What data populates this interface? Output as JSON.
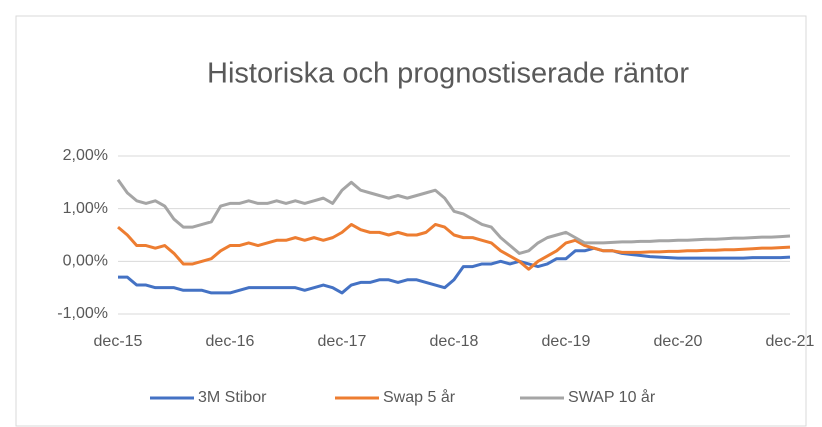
{
  "chart_data": {
    "type": "line",
    "title": "Historiska och prognostiserade räntor",
    "x": [
      "2015-12",
      "2016-01",
      "2016-02",
      "2016-03",
      "2016-04",
      "2016-05",
      "2016-06",
      "2016-07",
      "2016-08",
      "2016-09",
      "2016-10",
      "2016-11",
      "2016-12",
      "2017-01",
      "2017-02",
      "2017-03",
      "2017-04",
      "2017-05",
      "2017-06",
      "2017-07",
      "2017-08",
      "2017-09",
      "2017-10",
      "2017-11",
      "2017-12",
      "2018-01",
      "2018-02",
      "2018-03",
      "2018-04",
      "2018-05",
      "2018-06",
      "2018-07",
      "2018-08",
      "2018-09",
      "2018-10",
      "2018-11",
      "2018-12",
      "2019-01",
      "2019-02",
      "2019-03",
      "2019-04",
      "2019-05",
      "2019-06",
      "2019-07",
      "2019-08",
      "2019-09",
      "2019-10",
      "2019-11",
      "2019-12",
      "2020-01",
      "2020-02",
      "2020-03",
      "2020-04",
      "2020-05",
      "2020-06",
      "2020-07",
      "2020-08",
      "2020-09",
      "2020-10",
      "2020-11",
      "2020-12",
      "2021-01",
      "2021-02",
      "2021-03",
      "2021-04",
      "2021-05",
      "2021-06",
      "2021-07",
      "2021-08",
      "2021-09",
      "2021-10",
      "2021-11",
      "2021-12"
    ],
    "series": [
      {
        "name": "3M Stibor",
        "color": "#4472c4",
        "values": [
          -0.3,
          -0.3,
          -0.45,
          -0.45,
          -0.5,
          -0.5,
          -0.5,
          -0.55,
          -0.55,
          -0.55,
          -0.6,
          -0.6,
          -0.6,
          -0.55,
          -0.5,
          -0.5,
          -0.5,
          -0.5,
          -0.5,
          -0.5,
          -0.55,
          -0.5,
          -0.45,
          -0.5,
          -0.6,
          -0.45,
          -0.4,
          -0.4,
          -0.35,
          -0.35,
          -0.4,
          -0.35,
          -0.35,
          -0.4,
          -0.45,
          -0.5,
          -0.35,
          -0.1,
          -0.1,
          -0.05,
          -0.05,
          0.0,
          -0.05,
          0.0,
          -0.05,
          -0.1,
          -0.05,
          0.05,
          0.05,
          0.2,
          0.2,
          0.25,
          0.2,
          0.2,
          0.15,
          0.13,
          0.11,
          0.09,
          0.08,
          0.07,
          0.06,
          0.06,
          0.06,
          0.06,
          0.06,
          0.06,
          0.06,
          0.06,
          0.07,
          0.07,
          0.07,
          0.07,
          0.08
        ]
      },
      {
        "name": "Swap 5 år",
        "color": "#ed7d31",
        "values": [
          0.65,
          0.5,
          0.3,
          0.3,
          0.25,
          0.3,
          0.15,
          -0.05,
          -0.05,
          0.0,
          0.05,
          0.2,
          0.3,
          0.3,
          0.35,
          0.3,
          0.35,
          0.4,
          0.4,
          0.45,
          0.4,
          0.45,
          0.4,
          0.45,
          0.55,
          0.7,
          0.6,
          0.55,
          0.55,
          0.5,
          0.55,
          0.5,
          0.5,
          0.55,
          0.7,
          0.65,
          0.5,
          0.45,
          0.45,
          0.4,
          0.35,
          0.2,
          0.1,
          0.0,
          -0.15,
          0.0,
          0.1,
          0.2,
          0.35,
          0.4,
          0.3,
          0.25,
          0.2,
          0.2,
          0.17,
          0.17,
          0.17,
          0.18,
          0.18,
          0.19,
          0.19,
          0.2,
          0.2,
          0.21,
          0.21,
          0.22,
          0.22,
          0.23,
          0.24,
          0.25,
          0.25,
          0.26,
          0.27
        ]
      },
      {
        "name": "SWAP 10 år",
        "color": "#a5a5a5",
        "values": [
          1.55,
          1.3,
          1.15,
          1.1,
          1.15,
          1.05,
          0.8,
          0.65,
          0.65,
          0.7,
          0.75,
          1.05,
          1.1,
          1.1,
          1.15,
          1.1,
          1.1,
          1.15,
          1.1,
          1.15,
          1.1,
          1.15,
          1.2,
          1.1,
          1.35,
          1.5,
          1.35,
          1.3,
          1.25,
          1.2,
          1.25,
          1.2,
          1.25,
          1.3,
          1.35,
          1.2,
          0.95,
          0.9,
          0.8,
          0.7,
          0.65,
          0.45,
          0.3,
          0.15,
          0.2,
          0.35,
          0.45,
          0.5,
          0.55,
          0.45,
          0.35,
          0.35,
          0.35,
          0.36,
          0.37,
          0.37,
          0.38,
          0.38,
          0.39,
          0.39,
          0.4,
          0.4,
          0.41,
          0.42,
          0.42,
          0.43,
          0.44,
          0.44,
          0.45,
          0.46,
          0.46,
          0.47,
          0.48
        ]
      }
    ],
    "xlim": [
      "2015-12",
      "2021-12"
    ],
    "xticks": [
      {
        "value": "2015-12",
        "label": "dec-15"
      },
      {
        "value": "2016-12",
        "label": "dec-16"
      },
      {
        "value": "2017-12",
        "label": "dec-17"
      },
      {
        "value": "2018-12",
        "label": "dec-18"
      },
      {
        "value": "2019-12",
        "label": "dec-19"
      },
      {
        "value": "2020-12",
        "label": "dec-20"
      },
      {
        "value": "2021-12",
        "label": "dec-21"
      }
    ],
    "ylim": [
      -1,
      2
    ],
    "yticks": [
      {
        "value": -1,
        "label": "-1,00%"
      },
      {
        "value": 0,
        "label": "0,00%"
      },
      {
        "value": 1,
        "label": "1,00%"
      },
      {
        "value": 2,
        "label": "2,00%"
      }
    ],
    "grid": true,
    "legend": "bottom"
  }
}
